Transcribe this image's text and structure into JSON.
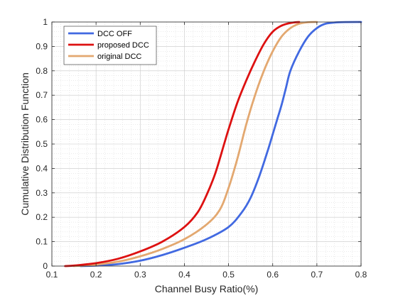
{
  "chart_data": {
    "type": "line",
    "title": "",
    "xlabel": "Channel Busy Ratio(%)",
    "ylabel": "Cumulative Distribution Function",
    "xlim": [
      0.1,
      0.8
    ],
    "ylim": [
      0,
      1
    ],
    "xticks": [
      0.1,
      0.2,
      0.3,
      0.4,
      0.5,
      0.6,
      0.7,
      0.8
    ],
    "yticks": [
      0,
      0.1,
      0.2,
      0.3,
      0.4,
      0.5,
      0.6,
      0.7,
      0.8,
      0.9,
      1
    ],
    "xtick_labels": [
      "0.1",
      "0.2",
      "0.3",
      "0.4",
      "0.5",
      "0.6",
      "0.7",
      "0.8"
    ],
    "ytick_labels": [
      "0",
      "0.1",
      "0.2",
      "0.3",
      "0.4",
      "0.5",
      "0.6",
      "0.7",
      "0.8",
      "0.9",
      "1"
    ],
    "grid": true,
    "minor_grid": true,
    "legend_position": "top-left",
    "series": [
      {
        "name": "DCC OFF",
        "color": "#4169E1",
        "x": [
          0.165,
          0.2,
          0.25,
          0.3,
          0.35,
          0.4,
          0.45,
          0.5,
          0.53,
          0.55,
          0.57,
          0.59,
          0.6,
          0.61,
          0.62,
          0.63,
          0.64,
          0.66,
          0.68,
          0.7,
          0.72,
          0.75,
          0.8
        ],
        "y": [
          0,
          0.002,
          0.008,
          0.022,
          0.045,
          0.075,
          0.11,
          0.16,
          0.22,
          0.28,
          0.37,
          0.48,
          0.54,
          0.6,
          0.66,
          0.73,
          0.8,
          0.88,
          0.94,
          0.975,
          0.993,
          0.999,
          1
        ]
      },
      {
        "name": "proposed DCC",
        "color": "#DD1111",
        "x": [
          0.13,
          0.15,
          0.2,
          0.25,
          0.3,
          0.35,
          0.4,
          0.43,
          0.45,
          0.47,
          0.49,
          0.5,
          0.52,
          0.54,
          0.56,
          0.58,
          0.6,
          0.62,
          0.64,
          0.66
        ],
        "y": [
          0,
          0.002,
          0.012,
          0.03,
          0.06,
          0.1,
          0.16,
          0.22,
          0.29,
          0.38,
          0.5,
          0.56,
          0.67,
          0.76,
          0.84,
          0.91,
          0.96,
          0.985,
          0.996,
          1
        ]
      },
      {
        "name": "original DCC",
        "color": "#E3A870",
        "x": [
          0.15,
          0.2,
          0.25,
          0.3,
          0.35,
          0.4,
          0.45,
          0.48,
          0.5,
          0.52,
          0.54,
          0.56,
          0.58,
          0.6,
          0.62,
          0.64,
          0.66,
          0.68,
          0.7
        ],
        "y": [
          0,
          0.006,
          0.018,
          0.04,
          0.07,
          0.11,
          0.17,
          0.23,
          0.32,
          0.44,
          0.58,
          0.7,
          0.8,
          0.88,
          0.94,
          0.975,
          0.993,
          0.999,
          1
        ]
      }
    ]
  }
}
